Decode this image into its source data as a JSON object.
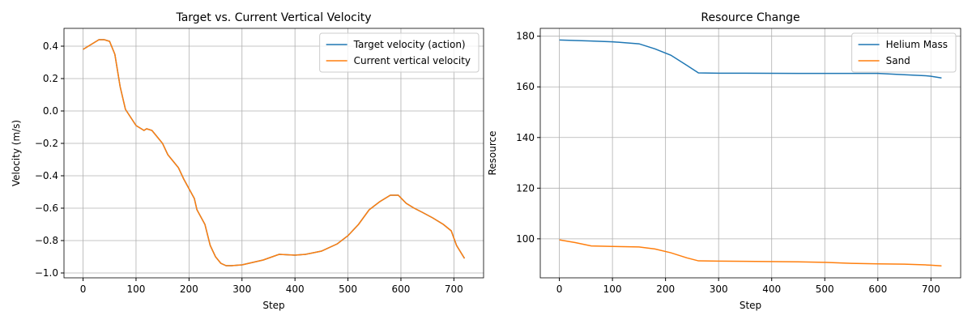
{
  "chart_data": [
    {
      "type": "line",
      "title": "Target vs. Current Vertical Velocity",
      "xlabel": "Step",
      "ylabel": "Velocity (m/s)",
      "x": [
        0,
        10,
        20,
        30,
        40,
        50,
        60,
        70,
        80,
        90,
        100,
        110,
        115,
        120,
        130,
        140,
        150,
        160,
        170,
        180,
        190,
        200,
        210,
        215,
        230,
        240,
        250,
        260,
        270,
        280,
        300,
        340,
        370,
        400,
        420,
        450,
        480,
        500,
        520,
        540,
        560,
        580,
        595,
        610,
        625,
        640,
        660,
        680,
        695,
        705,
        720
      ],
      "series": [
        {
          "name": "Target velocity (action)",
          "color": "#1f77b4",
          "values": [
            0.38,
            0.4,
            0.42,
            0.44,
            0.44,
            0.43,
            0.35,
            0.15,
            0.01,
            -0.04,
            -0.09,
            -0.11,
            -0.12,
            -0.11,
            -0.12,
            -0.16,
            -0.2,
            -0.27,
            -0.31,
            -0.35,
            -0.42,
            -0.48,
            -0.54,
            -0.61,
            -0.7,
            -0.83,
            -0.9,
            -0.94,
            -0.955,
            -0.955,
            -0.95,
            -0.92,
            -0.885,
            -0.89,
            -0.885,
            -0.865,
            -0.82,
            -0.77,
            -0.7,
            -0.61,
            -0.56,
            -0.52,
            -0.52,
            -0.57,
            -0.6,
            -0.625,
            -0.66,
            -0.7,
            -0.74,
            -0.83,
            -0.91
          ]
        },
        {
          "name": "Current vertical velocity",
          "color": "#ff7f0e",
          "values": [
            0.38,
            0.4,
            0.42,
            0.44,
            0.44,
            0.43,
            0.35,
            0.15,
            0.01,
            -0.04,
            -0.09,
            -0.11,
            -0.12,
            -0.11,
            -0.12,
            -0.16,
            -0.2,
            -0.27,
            -0.31,
            -0.35,
            -0.42,
            -0.48,
            -0.54,
            -0.61,
            -0.7,
            -0.83,
            -0.9,
            -0.94,
            -0.955,
            -0.955,
            -0.95,
            -0.92,
            -0.885,
            -0.89,
            -0.885,
            -0.865,
            -0.82,
            -0.77,
            -0.7,
            -0.61,
            -0.56,
            -0.52,
            -0.52,
            -0.57,
            -0.6,
            -0.625,
            -0.66,
            -0.7,
            -0.74,
            -0.83,
            -0.91
          ]
        }
      ],
      "xlim": [
        -36,
        756
      ],
      "ylim": [
        -1.03,
        0.51
      ],
      "xticks": [
        0,
        100,
        200,
        300,
        400,
        500,
        600,
        700
      ],
      "yticks": [
        0.4,
        0.2,
        {
          "value": 0,
          "label": "0.0"
        },
        {
          "value": -0.2,
          "label": "−0.2"
        },
        {
          "value": -0.4,
          "label": "−0.4"
        },
        {
          "value": -0.6,
          "label": "−0.6"
        },
        {
          "value": -0.8,
          "label": "−0.8"
        },
        {
          "value": -1,
          "label": "−1.0"
        }
      ],
      "grid": true,
      "legend": "upper-right"
    },
    {
      "type": "line",
      "title": "Resource Change",
      "xlabel": "Step",
      "ylabel": "Resource",
      "x": [
        0,
        30,
        60,
        100,
        150,
        180,
        210,
        240,
        262,
        300,
        350,
        450,
        500,
        550,
        600,
        650,
        690,
        700,
        720
      ],
      "series": [
        {
          "name": "Helium Mass",
          "color": "#1f77b4",
          "values": [
            178.5,
            178.3,
            178.1,
            177.8,
            177,
            175,
            172.5,
            168.5,
            165.5,
            165.4,
            165.4,
            165.3,
            165.3,
            165.3,
            165.3,
            164.8,
            164.4,
            164.2,
            163.5
          ]
        },
        {
          "name": "Sand",
          "color": "#ff7f0e",
          "values": [
            99.6,
            98.5,
            97.2,
            97,
            96.8,
            96,
            94.5,
            92.5,
            91.3,
            91.2,
            91.1,
            90.9,
            90.7,
            90.3,
            90.1,
            90,
            89.7,
            89.6,
            89.3
          ]
        }
      ],
      "xlim": [
        -36,
        756
      ],
      "ylim": [
        84.6,
        183.1
      ],
      "xticks": [
        0,
        100,
        200,
        300,
        400,
        500,
        600,
        700
      ],
      "yticks": [
        100,
        120,
        140,
        160,
        180
      ],
      "grid": true,
      "legend": "upper-right"
    }
  ]
}
